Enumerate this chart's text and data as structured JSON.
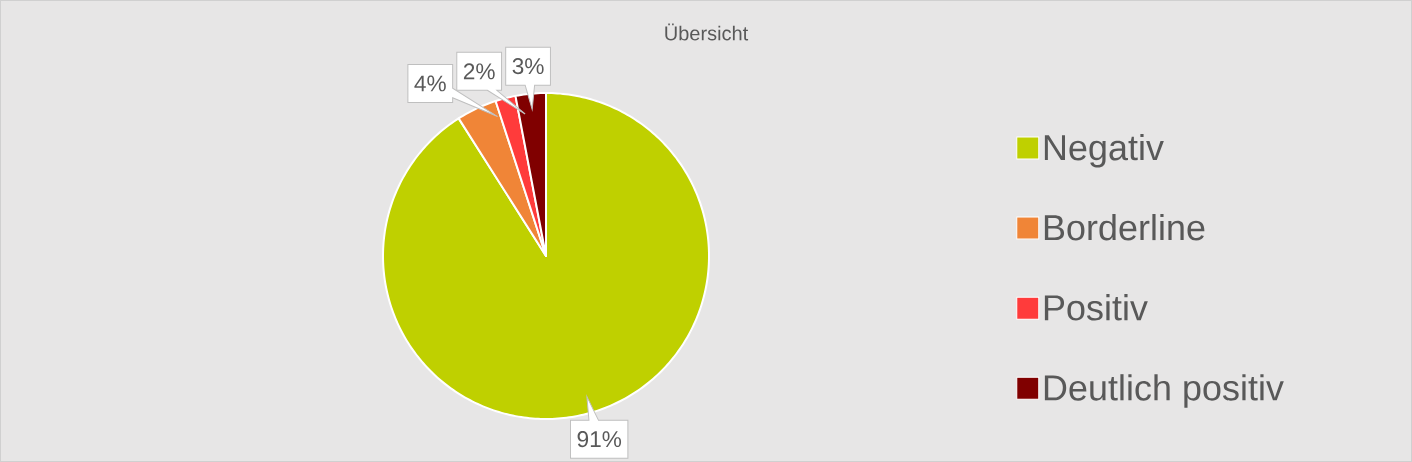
{
  "chart_data": {
    "type": "pie",
    "title": "Übersicht",
    "categories": [
      "Negativ",
      "Borderline",
      "Positiv",
      "Deutlich positiv"
    ],
    "values": [
      91,
      4,
      2,
      3
    ],
    "colors": [
      "#bfd000",
      "#f08537",
      "#ff3b3b",
      "#800000"
    ],
    "value_labels": [
      "91%",
      "4%",
      "2%",
      "3%"
    ],
    "legend": "right"
  }
}
